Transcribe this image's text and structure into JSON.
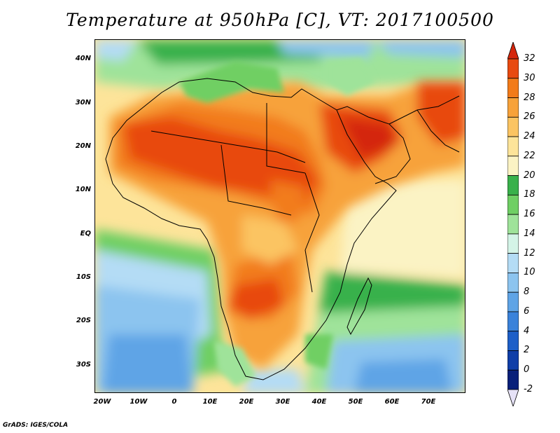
{
  "title": "Temperature at 950hPa [C], VT: 2017100500",
  "credit": "GrADS: IGES/COLA",
  "map": {
    "lon_range": [
      -23,
      80
    ],
    "lat_range": [
      -37,
      45
    ],
    "lat_ticks": [
      "40N",
      "30N",
      "20N",
      "10N",
      "EQ",
      "10S",
      "20S",
      "30S"
    ],
    "lon_ticks": [
      "20W",
      "10W",
      "0",
      "10E",
      "20E",
      "30E",
      "40E",
      "50E",
      "60E",
      "70E"
    ]
  },
  "colorbar": {
    "levels": [
      "32",
      "30",
      "28",
      "26",
      "24",
      "22",
      "20",
      "18",
      "16",
      "14",
      "12",
      "10",
      "8",
      "6",
      "4",
      "2",
      "0",
      "-2"
    ],
    "colors": [
      "#d4260c",
      "#e84a10",
      "#f27b1a",
      "#f7a23a",
      "#fbc462",
      "#fde49a",
      "#fbf3c4",
      "#39b14b",
      "#6fcf64",
      "#9fe39a",
      "#d4f4e7",
      "#b4dcf5",
      "#8cc4ef",
      "#5fa4e6",
      "#3a82da",
      "#1d5fc8",
      "#0f3ea8",
      "#08207a",
      "#e6e2f7"
    ]
  }
}
